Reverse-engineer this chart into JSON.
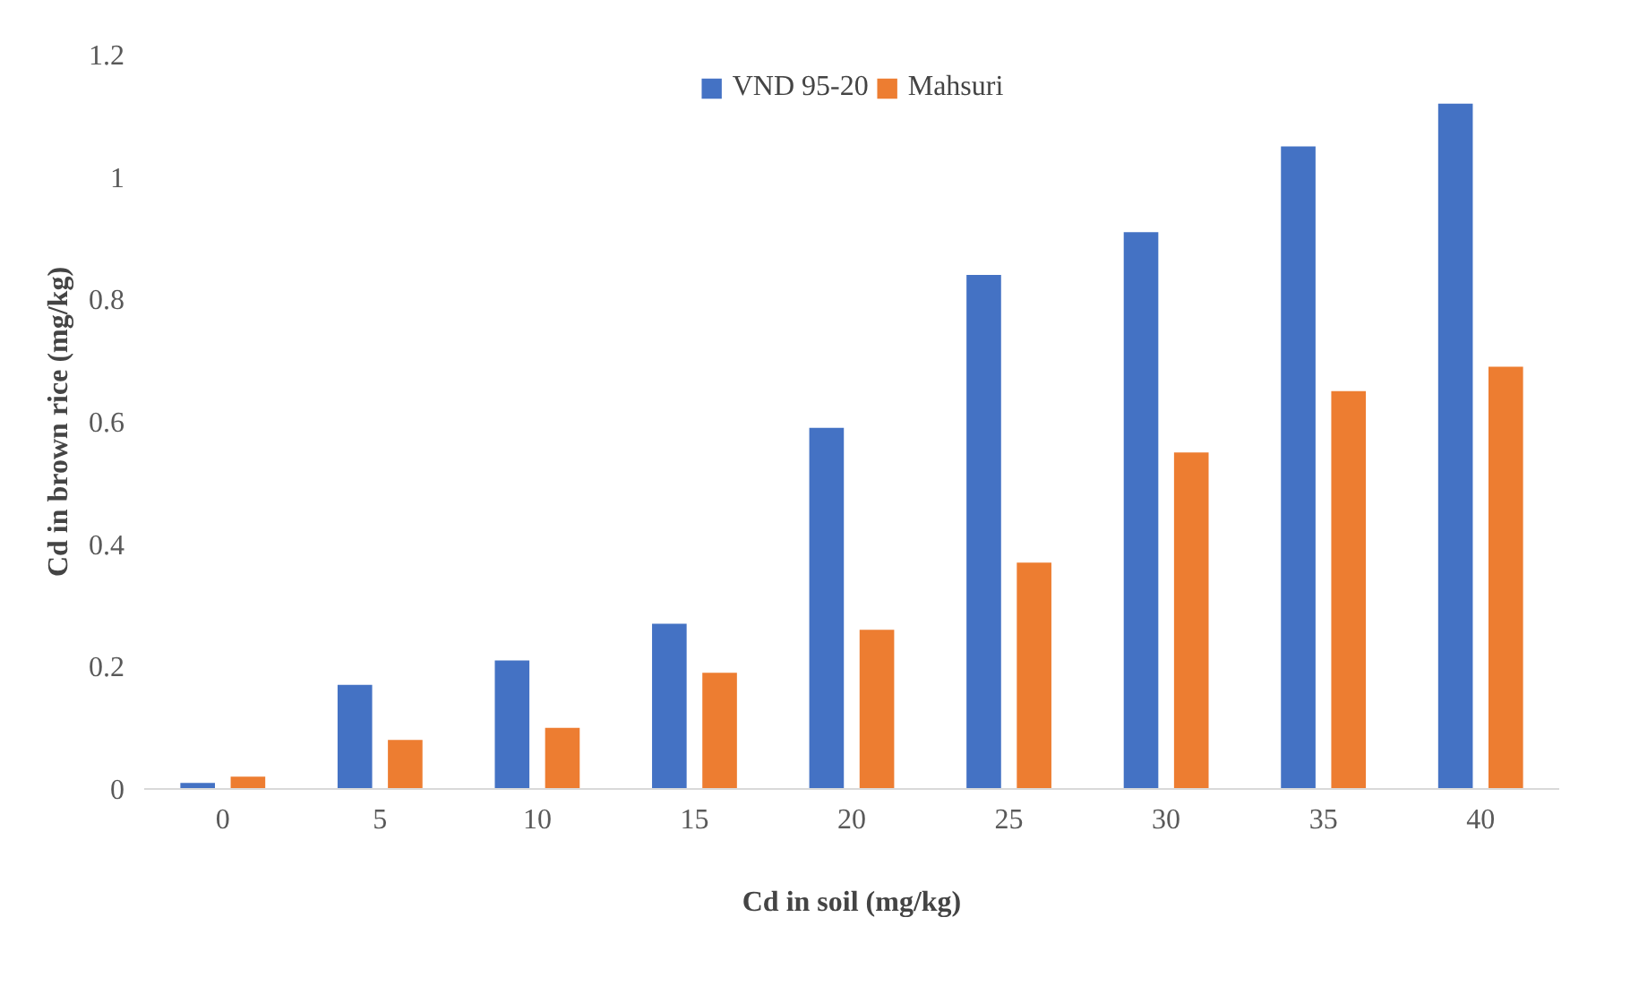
{
  "chart_data": {
    "type": "bar",
    "xlabel": "Cd in soil (mg/kg)",
    "ylabel": "Cd in brown rice (mg/kg)",
    "categories": [
      "0",
      "5",
      "10",
      "15",
      "20",
      "25",
      "30",
      "35",
      "40"
    ],
    "series": [
      {
        "name": "VND 95-20",
        "color": "#4472c4",
        "values": [
          0.01,
          0.17,
          0.21,
          0.27,
          0.59,
          0.84,
          0.91,
          1.05,
          1.12
        ]
      },
      {
        "name": "Mahsuri",
        "color": "#ed7d31",
        "values": [
          0.02,
          0.08,
          0.1,
          0.19,
          0.26,
          0.37,
          0.55,
          0.65,
          0.69
        ]
      }
    ],
    "ylim": [
      0,
      1.2
    ],
    "yticks": [
      0,
      0.2,
      0.4,
      0.6,
      0.8,
      1,
      1.2
    ],
    "legend": "top",
    "grid": false
  }
}
